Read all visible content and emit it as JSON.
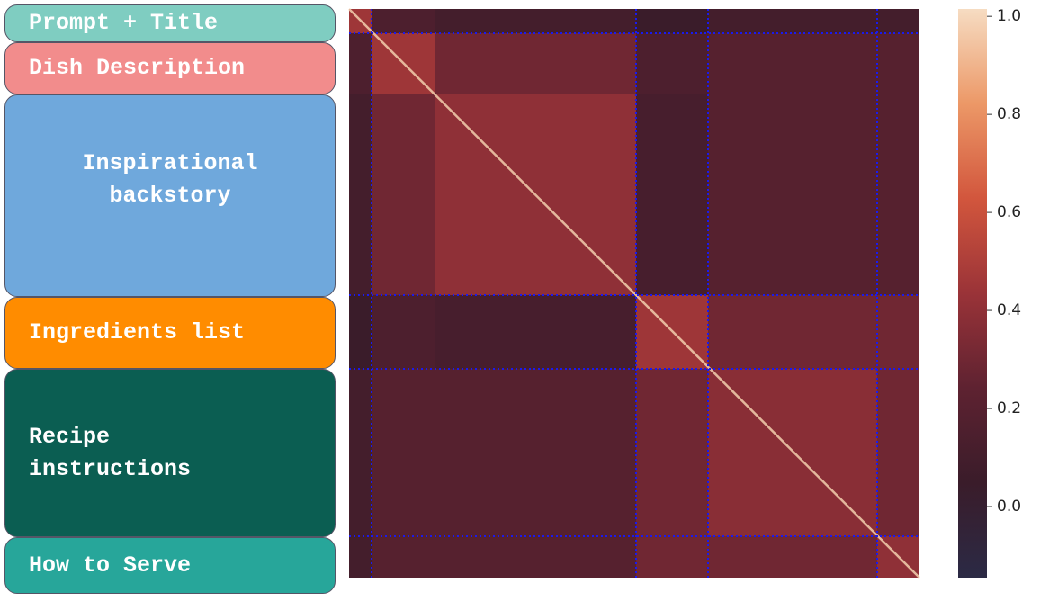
{
  "chart_data": {
    "type": "heatmap",
    "sections": [
      "Prompt + Title",
      "Dish Description",
      "Inspirational backstory",
      "Ingredients list",
      "Recipe instructions",
      "How to Serve"
    ],
    "section_colors": [
      "#7fcdc1",
      "#f28c8c",
      "#6fa8dc",
      "#ff8c00",
      "#0b5e52",
      "#27a69a"
    ],
    "values": [
      [
        0.45,
        0.15,
        0.1,
        0.05,
        0.1,
        0.1
      ],
      [
        0.15,
        0.45,
        0.3,
        0.15,
        0.2,
        0.2
      ],
      [
        0.1,
        0.3,
        0.4,
        0.12,
        0.2,
        0.2
      ],
      [
        0.05,
        0.15,
        0.12,
        0.45,
        0.3,
        0.3
      ],
      [
        0.1,
        0.2,
        0.2,
        0.3,
        0.38,
        0.3
      ],
      [
        0.1,
        0.2,
        0.2,
        0.3,
        0.3,
        0.4
      ]
    ],
    "colors": [
      "#2b2a45",
      "#3a1c2a",
      "#5e2231",
      "#9a3338",
      "#d2563d",
      "#ec9867",
      "#f6dcc2"
    ],
    "ylim": [
      -0.145,
      1.015
    ],
    "yticks": [
      {
        "value": 0,
        "label": "0.0"
      },
      0.2,
      0.4,
      0.6,
      0.8,
      {
        "value": 1,
        "label": "1.0"
      }
    ]
  }
}
